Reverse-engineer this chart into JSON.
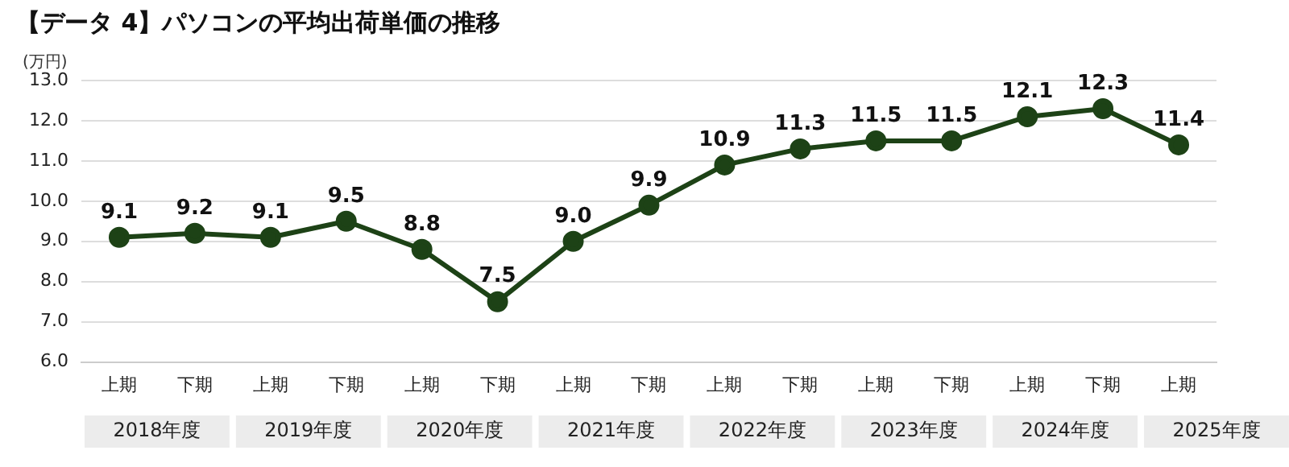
{
  "chart_data": {
    "type": "line",
    "title": "【データ 4】パソコンの平均出荷単価の推移",
    "ylabel": "(万円)",
    "categories": [
      "上期",
      "下期",
      "上期",
      "下期",
      "上期",
      "下期",
      "上期",
      "下期",
      "上期",
      "下期",
      "上期",
      "下期",
      "上期",
      "下期",
      "上期"
    ],
    "series": [
      {
        "color": "#1d4216",
        "values": [
          9.1,
          9.2,
          9.1,
          9.5,
          8.8,
          7.5,
          9.0,
          9.9,
          10.9,
          11.3,
          11.5,
          11.5,
          12.1,
          12.3,
          11.4
        ],
        "value_labels": [
          "9.1",
          "9.2",
          "9.1",
          "9.5",
          "8.8",
          "7.5",
          "9.0",
          "9.9",
          "10.9",
          "11.3",
          "11.5",
          "11.5",
          "12.1",
          "12.3",
          "11.4"
        ]
      }
    ],
    "ylim": [
      6,
      13
    ],
    "yticks": [
      {
        "value": 6,
        "label": "6.0"
      },
      {
        "value": 7,
        "label": "7.0"
      },
      {
        "value": 8,
        "label": "8.0"
      },
      {
        "value": 9,
        "label": "9.0"
      },
      {
        "value": 10,
        "label": "10.0"
      },
      {
        "value": 11,
        "label": "11.0"
      },
      {
        "value": 12,
        "label": "12.0"
      },
      {
        "value": 13,
        "label": "13.0"
      }
    ],
    "annotations": [
      "2018年度",
      "2019年度",
      "2020年度",
      "2021年度",
      "2022年度",
      "2023年度",
      "2024年度",
      "2025年度"
    ],
    "grid": "y",
    "legend": false,
    "marker": "circle",
    "line_style": "solid"
  }
}
